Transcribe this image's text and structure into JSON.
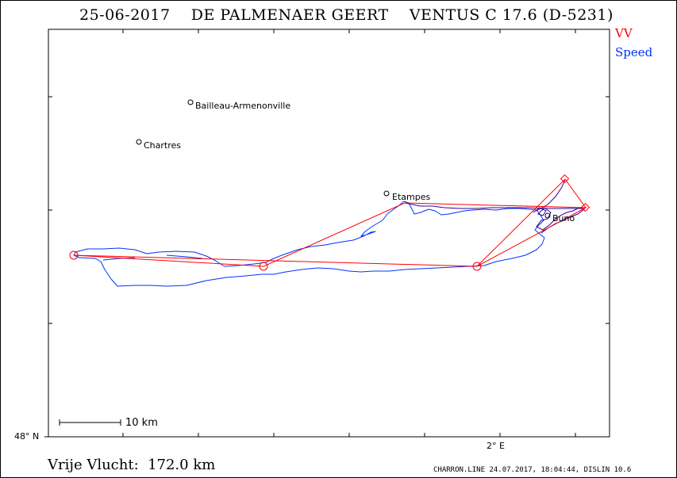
{
  "header": {
    "title": "25-06-2017    DE PALMENAER GEERT    VENTUS C 17.6 (D-5231)"
  },
  "legend": {
    "items": [
      {
        "label": "VV",
        "color": "#ff0000"
      },
      {
        "label": "Speed",
        "color": "#0033ff"
      }
    ]
  },
  "places": [
    {
      "name": "Bailleau-Armenonville"
    },
    {
      "name": "Chartres"
    },
    {
      "name": "Etampes"
    },
    {
      "name": "Buno"
    }
  ],
  "axes": {
    "lat_label": "48° N",
    "lon_label": "2° E"
  },
  "scale": {
    "label": "10 km"
  },
  "footer": {
    "distance": "Vrije Vlucht:  172.0 km",
    "credit": "CHARRON.LINE 24.07.2017, 18:04:44, DISLIN 10.6"
  },
  "colors": {
    "task": "#ff0000",
    "track": "#0033ff",
    "track_alt": "#330099",
    "axis": "#000000"
  }
}
